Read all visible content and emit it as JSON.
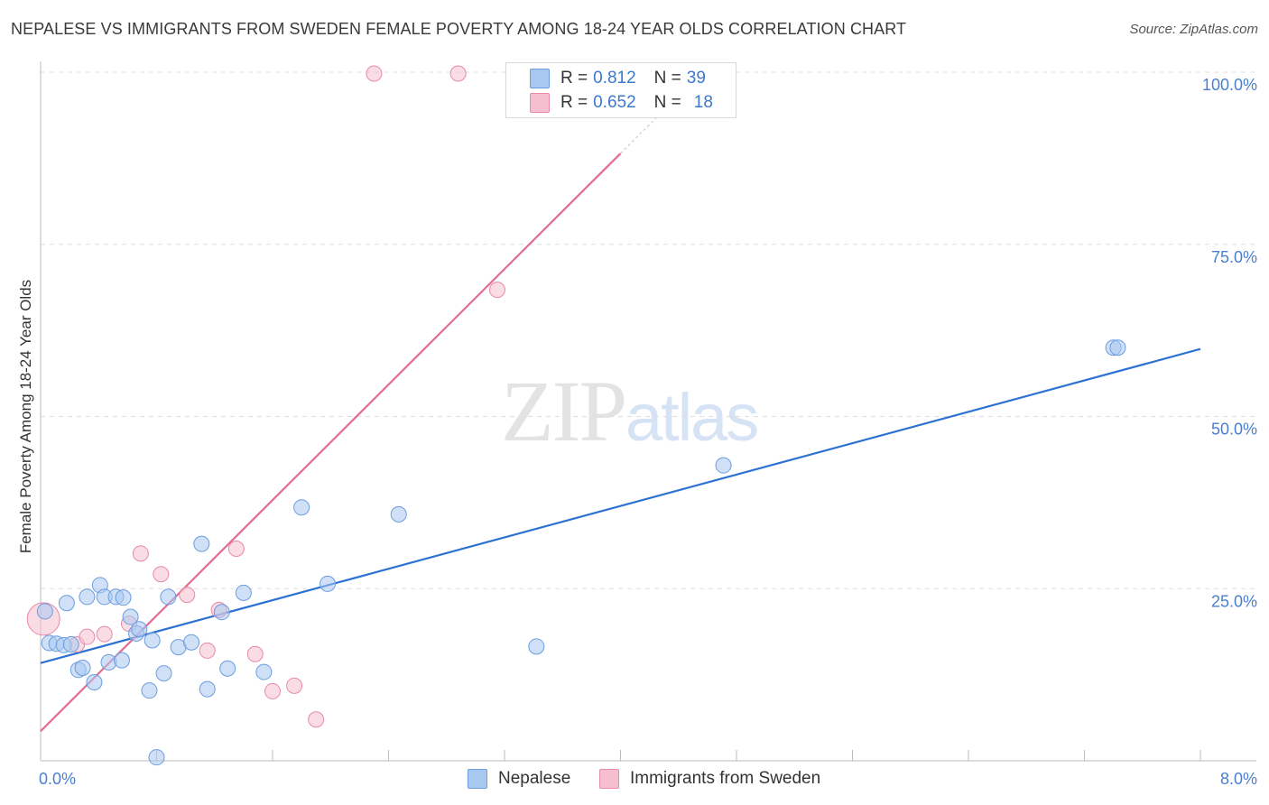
{
  "header": {
    "title": "NEPALESE VS IMMIGRANTS FROM SWEDEN FEMALE POVERTY AMONG 18-24 YEAR OLDS CORRELATION CHART",
    "source": "Source: ZipAtlas.com"
  },
  "watermark": {
    "zip": "ZIP",
    "atlas": "atlas"
  },
  "legend": {
    "nepalese": {
      "r_label": "R =",
      "r_value": "0.812",
      "n_label": "N =",
      "n_value": "39"
    },
    "sweden": {
      "r_label": "R =",
      "r_value": "0.652",
      "n_label": "N =",
      "n_value": "18"
    }
  },
  "colors": {
    "nepalese_fill": "#a9c8f0",
    "nepalese_stroke": "#6b9de0",
    "nepalese_line": "#2d72d2",
    "sweden_fill": "#f6bfd0",
    "sweden_stroke": "#e88aa8",
    "sweden_line": "#e46b92"
  },
  "chart_data": {
    "type": "scatter",
    "title": "NEPALESE VS IMMIGRANTS FROM SWEDEN FEMALE POVERTY AMONG 18-24 YEAR OLDS CORRELATION CHART",
    "xlabel": "",
    "ylabel": "Female Poverty Among 18-24 Year Olds",
    "xlim": [
      0,
      8
    ],
    "ylim": [
      0,
      100
    ],
    "x_tick_labels": [
      "0.0%",
      "8.0%"
    ],
    "y_ticks": [
      25,
      50,
      75,
      100
    ],
    "y_tick_labels": [
      "25.0%",
      "50.0%",
      "75.0%",
      "100.0%"
    ],
    "legend_position": "bottom-center",
    "series": [
      {
        "name": "Nepalese",
        "r": 0.812,
        "n": 39,
        "trend": {
          "x": [
            0,
            8
          ],
          "y": [
            14.2,
            59.8
          ]
        },
        "points": [
          {
            "x": 0.03,
            "y": 21.7
          },
          {
            "x": 0.06,
            "y": 17.1
          },
          {
            "x": 0.11,
            "y": 17.0
          },
          {
            "x": 0.16,
            "y": 16.8
          },
          {
            "x": 0.21,
            "y": 16.9
          },
          {
            "x": 0.18,
            "y": 22.9
          },
          {
            "x": 0.26,
            "y": 13.2
          },
          {
            "x": 0.29,
            "y": 13.5
          },
          {
            "x": 0.32,
            "y": 23.8
          },
          {
            "x": 0.37,
            "y": 11.4
          },
          {
            "x": 0.41,
            "y": 25.5
          },
          {
            "x": 0.44,
            "y": 23.8
          },
          {
            "x": 0.47,
            "y": 14.3
          },
          {
            "x": 0.52,
            "y": 23.8
          },
          {
            "x": 0.56,
            "y": 14.6
          },
          {
            "x": 0.57,
            "y": 23.7
          },
          {
            "x": 0.62,
            "y": 20.9
          },
          {
            "x": 0.66,
            "y": 18.5
          },
          {
            "x": 0.68,
            "y": 19.1
          },
          {
            "x": 0.75,
            "y": 10.2
          },
          {
            "x": 0.77,
            "y": 17.5
          },
          {
            "x": 0.8,
            "y": 0.5
          },
          {
            "x": 0.85,
            "y": 12.7
          },
          {
            "x": 0.88,
            "y": 23.8
          },
          {
            "x": 0.95,
            "y": 16.5
          },
          {
            "x": 1.04,
            "y": 17.2
          },
          {
            "x": 1.11,
            "y": 31.5
          },
          {
            "x": 1.15,
            "y": 10.4
          },
          {
            "x": 1.25,
            "y": 21.6
          },
          {
            "x": 1.29,
            "y": 13.4
          },
          {
            "x": 1.4,
            "y": 24.4
          },
          {
            "x": 1.54,
            "y": 12.9
          },
          {
            "x": 1.8,
            "y": 36.8
          },
          {
            "x": 1.98,
            "y": 25.7
          },
          {
            "x": 2.47,
            "y": 35.8
          },
          {
            "x": 3.42,
            "y": 16.6
          },
          {
            "x": 4.71,
            "y": 42.9
          },
          {
            "x": 7.4,
            "y": 60.0
          },
          {
            "x": 7.43,
            "y": 60.0
          }
        ]
      },
      {
        "name": "Immigrants from Sweden",
        "r": 0.652,
        "n": 18,
        "trend": {
          "x": [
            0,
            4.0
          ],
          "y": [
            4.3,
            88.2
          ]
        },
        "points": [
          {
            "x": 0.02,
            "y": 20.6
          },
          {
            "x": 0.25,
            "y": 16.9
          },
          {
            "x": 0.32,
            "y": 18.0
          },
          {
            "x": 0.44,
            "y": 18.4
          },
          {
            "x": 0.61,
            "y": 19.9
          },
          {
            "x": 0.69,
            "y": 30.1
          },
          {
            "x": 0.83,
            "y": 27.1
          },
          {
            "x": 1.01,
            "y": 24.1
          },
          {
            "x": 1.15,
            "y": 16.0
          },
          {
            "x": 1.23,
            "y": 21.9
          },
          {
            "x": 1.35,
            "y": 30.8
          },
          {
            "x": 1.48,
            "y": 15.5
          },
          {
            "x": 1.6,
            "y": 10.1
          },
          {
            "x": 1.75,
            "y": 10.9
          },
          {
            "x": 1.9,
            "y": 6.0
          },
          {
            "x": 2.3,
            "y": 99.8
          },
          {
            "x": 2.88,
            "y": 99.8
          },
          {
            "x": 3.15,
            "y": 68.4
          }
        ]
      }
    ]
  }
}
